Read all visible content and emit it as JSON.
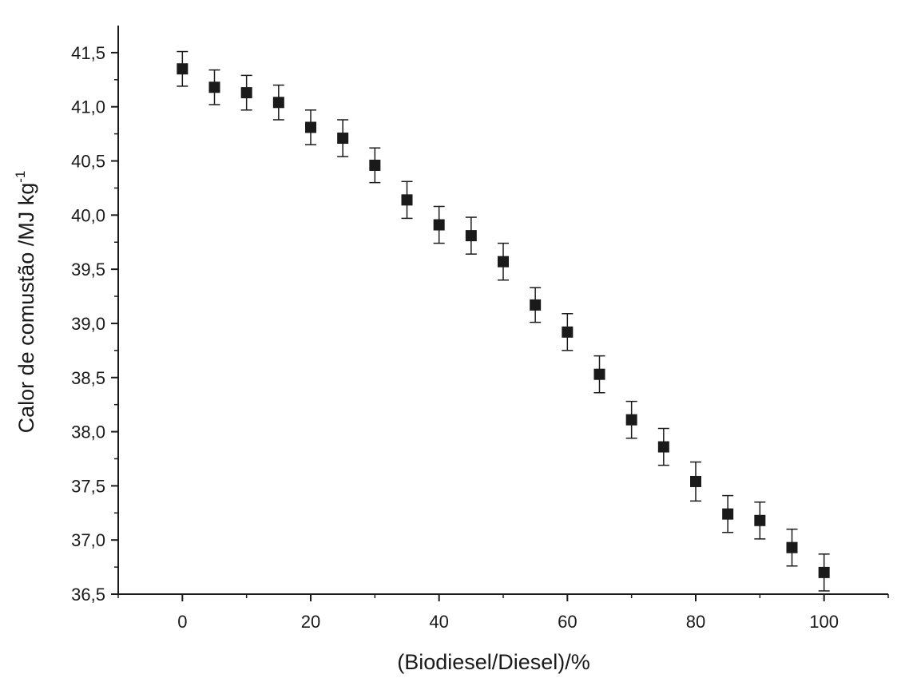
{
  "chart_data": {
    "type": "scatter",
    "title": "",
    "xlabel": "(Biodiesel/Diesel)/%",
    "ylabel": "Calor de comustão /MJ kg",
    "ylabel_superscript": "-1",
    "xlim": [
      -10,
      110
    ],
    "ylim": [
      36.5,
      41.75
    ],
    "x_ticks": [
      0,
      20,
      40,
      60,
      80,
      100
    ],
    "x_tick_labels": [
      "0",
      "20",
      "40",
      "60",
      "80",
      "100"
    ],
    "y_ticks": [
      36.5,
      37.0,
      37.5,
      38.0,
      38.5,
      39.0,
      39.5,
      40.0,
      40.5,
      41.0,
      41.5
    ],
    "y_tick_labels": [
      "36,5",
      "37,0",
      "37,5",
      "38,0",
      "38,5",
      "39,0",
      "39,5",
      "40,0",
      "40,5",
      "41,0",
      "41,5"
    ],
    "grid": false,
    "marker": "filled-square",
    "marker_color": "#1a1a1a",
    "axis_color": "#1a1a1a",
    "series": [
      {
        "x": [
          0,
          5,
          10,
          15,
          20,
          25,
          30,
          35,
          40,
          45,
          50,
          55,
          60,
          65,
          70,
          75,
          80,
          85,
          90,
          95,
          100
        ],
        "y": [
          41.35,
          41.18,
          41.13,
          41.04,
          40.81,
          40.71,
          40.46,
          40.14,
          39.91,
          39.81,
          39.57,
          39.17,
          38.92,
          38.53,
          38.11,
          37.86,
          37.54,
          37.24,
          37.18,
          36.93,
          36.7
        ],
        "error": [
          0.16,
          0.16,
          0.16,
          0.16,
          0.16,
          0.17,
          0.16,
          0.17,
          0.17,
          0.17,
          0.17,
          0.16,
          0.17,
          0.17,
          0.17,
          0.17,
          0.18,
          0.17,
          0.17,
          0.17,
          0.17
        ]
      }
    ]
  }
}
